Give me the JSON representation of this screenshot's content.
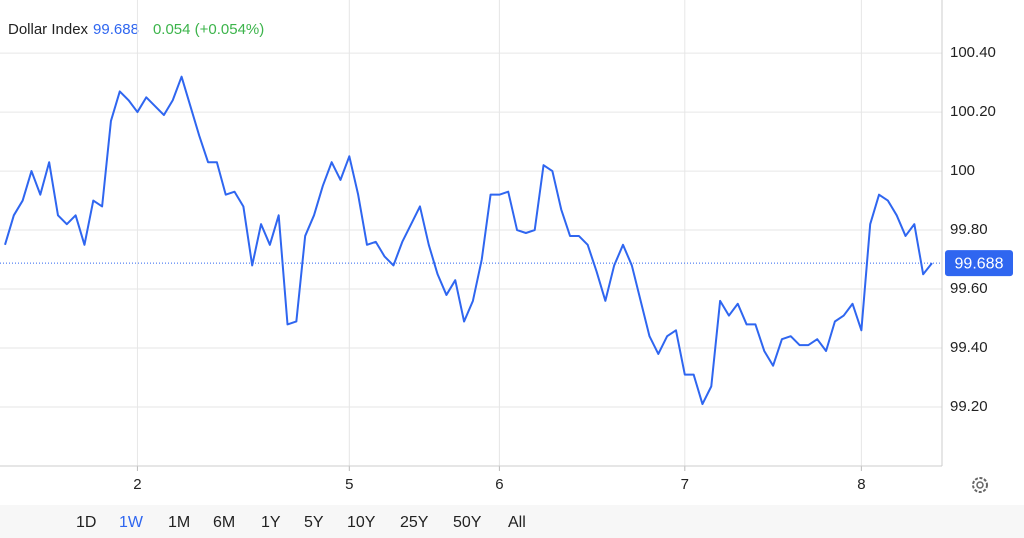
{
  "chart_data": {
    "type": "line",
    "title": "Dollar Index",
    "last_value": 99.688,
    "change": "0.054 (+0.054%)",
    "series": [
      {
        "name": "Dollar Index",
        "color": "#2f66f0",
        "values": [
          99.75,
          99.85,
          99.9,
          100.0,
          99.92,
          100.03,
          99.85,
          99.82,
          99.85,
          99.75,
          99.9,
          99.88,
          100.17,
          100.27,
          100.24,
          100.2,
          100.25,
          100.22,
          100.19,
          100.24,
          100.32,
          100.22,
          100.12,
          100.03,
          100.03,
          99.92,
          99.93,
          99.88,
          99.68,
          99.82,
          99.75,
          99.85,
          99.48,
          99.49,
          99.78,
          99.85,
          99.95,
          100.03,
          99.97,
          100.05,
          99.92,
          99.75,
          99.76,
          99.71,
          99.68,
          99.76,
          99.82,
          99.88,
          99.75,
          99.65,
          99.58,
          99.63,
          99.49,
          99.56,
          99.7,
          99.92,
          99.92,
          99.93,
          99.8,
          99.79,
          99.8,
          100.02,
          100.0,
          99.87,
          99.78,
          99.78,
          99.75,
          99.66,
          99.56,
          99.68,
          99.75,
          99.68,
          99.56,
          99.44,
          99.38,
          99.44,
          99.46,
          99.31,
          99.31,
          99.21,
          99.27,
          99.56,
          99.51,
          99.55,
          99.48,
          99.48,
          99.39,
          99.34,
          99.43,
          99.44,
          99.41,
          99.41,
          99.43,
          99.39,
          99.49,
          99.51,
          99.55,
          99.46,
          99.82,
          99.92,
          99.9,
          99.85,
          99.78,
          99.82,
          99.65,
          99.688
        ]
      }
    ],
    "xlim": [
      0,
      105
    ],
    "xticks": [
      {
        "value": 15,
        "label": "2"
      },
      {
        "value": 39,
        "label": "5"
      },
      {
        "value": 56,
        "label": "6"
      },
      {
        "value": 77,
        "label": "7"
      },
      {
        "value": 97,
        "label": "8"
      }
    ],
    "ylim": [
      99.0,
      100.58
    ],
    "yticks": [
      {
        "value": 100.4,
        "label": "100.40"
      },
      {
        "value": 100.2,
        "label": "100.20"
      },
      100,
      {
        "value": 99.8,
        "label": "99.80"
      },
      {
        "value": 99.6,
        "label": "99.60"
      },
      {
        "value": 99.4,
        "label": "99.40"
      },
      {
        "value": 99.2,
        "label": "99.20"
      }
    ],
    "grid": true,
    "ranges": [
      "1D",
      "1W",
      "1M",
      "6M",
      "1Y",
      "5Y",
      "10Y",
      "25Y",
      "50Y",
      "All"
    ],
    "active_range": 1
  }
}
